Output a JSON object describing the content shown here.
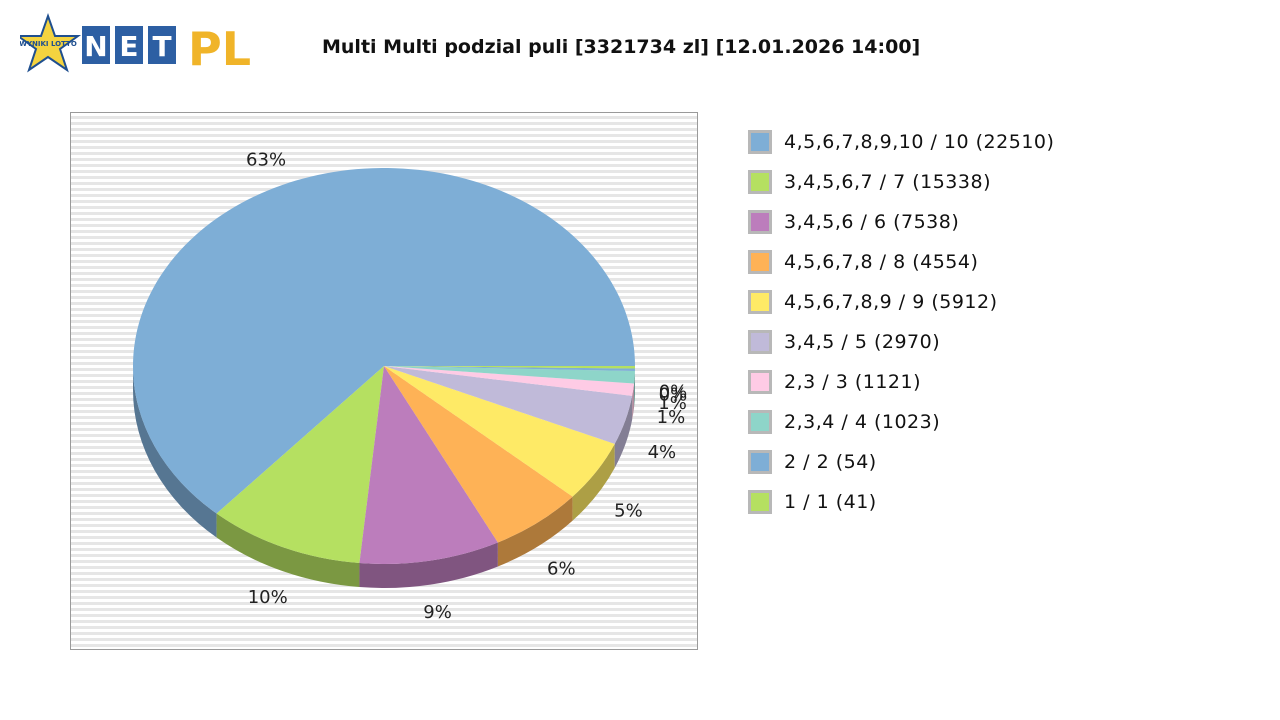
{
  "logo": {
    "badge_text": "WYNIKI LOTTO",
    "letters_blue": [
      "N",
      "E",
      "T"
    ],
    "letters_gold": "PL"
  },
  "title": "Multi Multi podzial puli [3321734 zl] [12.01.2026 14:00]",
  "chart_data": {
    "type": "pie",
    "title": "Multi Multi podzial puli [3321734 zl] [12.01.2026 14:00]",
    "slices": [
      {
        "label": "4,5,6,7,8,9,10 / 10 (22510)",
        "percent": 63,
        "pct_label": "63%",
        "color": "#7eaed6"
      },
      {
        "label": "3,4,5,6,7 / 7 (15338)",
        "percent": 10,
        "pct_label": "10%",
        "color": "#b5e061"
      },
      {
        "label": "3,4,5,6 / 6 (7538)",
        "percent": 9,
        "pct_label": "9%",
        "color": "#bc7dbc"
      },
      {
        "label": "4,5,6,7,8 / 8 (4554)",
        "percent": 6,
        "pct_label": "6%",
        "color": "#feb256"
      },
      {
        "label": "4,5,6,7,8,9 / 9 (5912)",
        "percent": 5,
        "pct_label": "5%",
        "color": "#feea66"
      },
      {
        "label": "3,4,5 / 5 (2970)",
        "percent": 4,
        "pct_label": "4%",
        "color": "#c0bad9"
      },
      {
        "label": "2,3 / 3 (1121)",
        "percent": 1,
        "pct_label": "1%",
        "color": "#fecbe5"
      },
      {
        "label": "2,3,4 / 4 (1023)",
        "percent": 1,
        "pct_label": "1%",
        "color": "#8ed5c9"
      },
      {
        "label": "2 / 2 (54)",
        "percent": 0,
        "pct_label": "0%",
        "color": "#7eaed6"
      },
      {
        "label": "1 / 1 (41)",
        "percent": 0,
        "pct_label": "0%",
        "color": "#b5e061"
      }
    ],
    "legend_position": "right"
  }
}
